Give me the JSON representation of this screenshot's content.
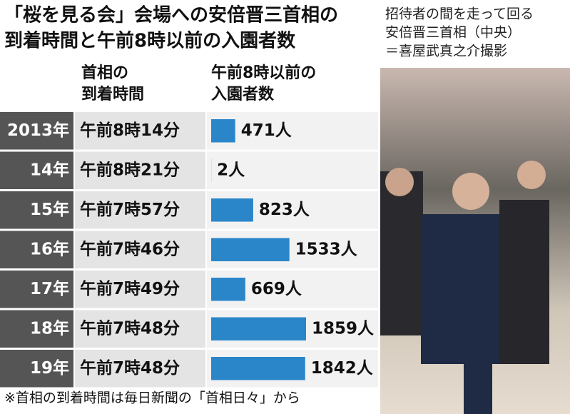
{
  "chart_data": {
    "type": "bar",
    "title": [
      "「桜を見る会」会場への安倍晋三首相の",
      "到着時間と午前8時以前の入園者数"
    ],
    "column_headers": [
      [
        "首相の",
        "到着時間"
      ],
      [
        "午前8時以前の",
        "入園者数"
      ]
    ],
    "categories": [
      "2013年",
      "14年",
      "15年",
      "16年",
      "17年",
      "18年",
      "19年"
    ],
    "arrival_times": [
      "午前8時14分",
      "午前8時21分",
      "午前7時57分",
      "午前7時46分",
      "午前7時49分",
      "午前7時48分",
      "午前7時48分"
    ],
    "values": [
      471,
      2,
      823,
      1533,
      669,
      1859,
      1842
    ],
    "value_labels": [
      "471人",
      "2人",
      "823人",
      "1533人",
      "669人",
      "1859人",
      "1842人"
    ],
    "color": "#2b86c9",
    "note": "※首相の到着時間は毎日新聞の「首相日々」から"
  },
  "photo": {
    "caption": [
      "招待者の間を走って回る",
      "安倍晋三首相（中央）",
      "＝喜屋武真之介撮影"
    ]
  }
}
